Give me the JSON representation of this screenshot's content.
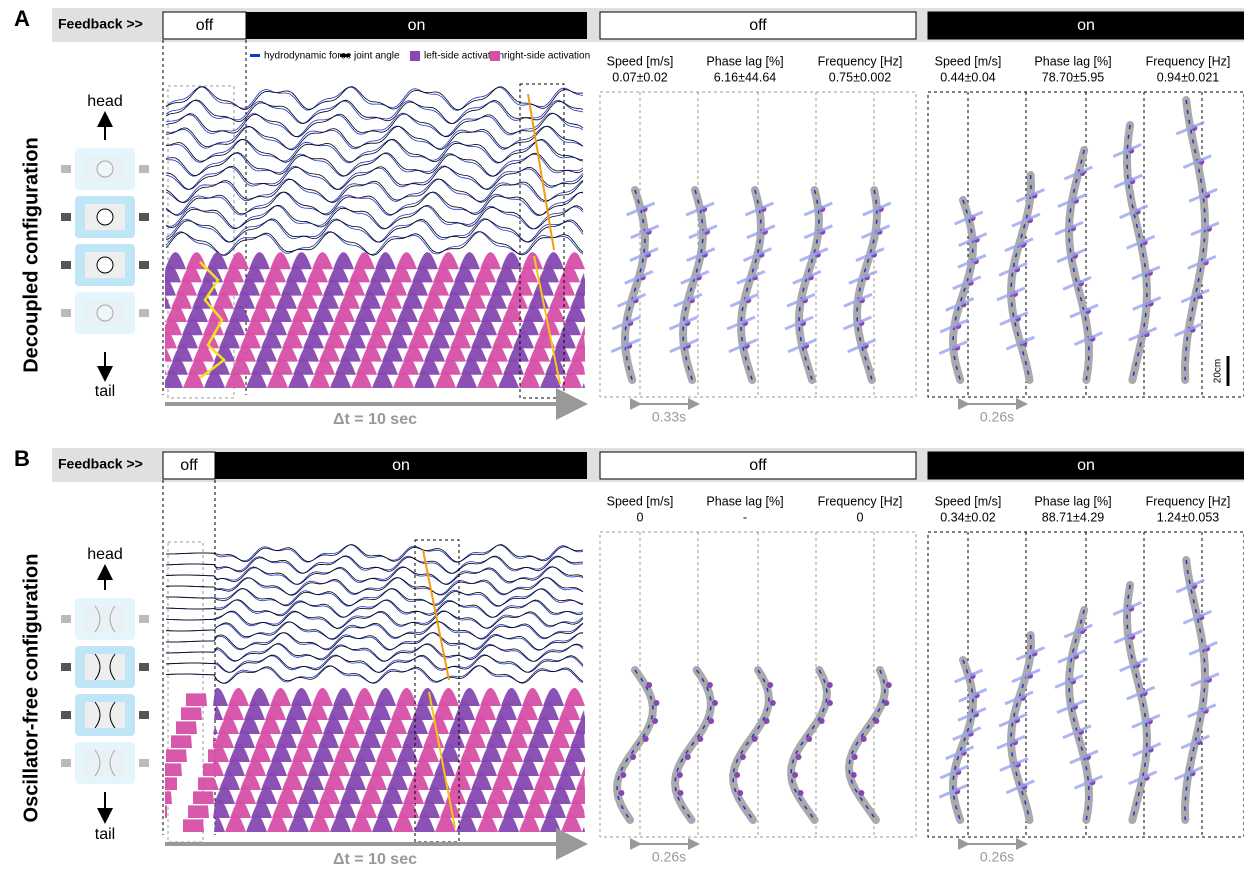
{
  "panels": [
    {
      "label": "A",
      "feedback": "Feedback >>",
      "trace_off": "off",
      "trace_on": "on",
      "legend": [
        "hydrodynamic force",
        "joint angle",
        "left-side activation",
        "right-side activation"
      ],
      "schematic": {
        "head": "head",
        "tail": "tail"
      },
      "configuration": "Decoupled configuration",
      "time_axis": "Δt = 10 sec",
      "conditions": [
        {
          "label": "off",
          "stats": [
            {
              "name": "Speed [m/s]",
              "value": "0.07±0.02"
            },
            {
              "name": "Phase lag [%]",
              "value": "6.16±44.64"
            },
            {
              "name": "Frequency [Hz]",
              "value": "0.75±0.002"
            }
          ],
          "interval": "0.33s"
        },
        {
          "label": "on",
          "stats": [
            {
              "name": "Speed [m/s]",
              "value": "0.44±0.04"
            },
            {
              "name": "Phase lag [%]",
              "value": "78.70±5.95"
            },
            {
              "name": "Frequency [Hz]",
              "value": "0.94±0.021"
            }
          ],
          "interval": "0.26s",
          "scale_bar": "20cm"
        }
      ]
    },
    {
      "label": "B",
      "feedback": "Feedback >>",
      "trace_off": "off",
      "trace_on": "on",
      "schematic": {
        "head": "head",
        "tail": "tail"
      },
      "configuration": "Oscillator-free configuration",
      "time_axis": "Δt = 10 sec",
      "conditions": [
        {
          "label": "off",
          "stats": [
            {
              "name": "Speed [m/s]",
              "value": "0"
            },
            {
              "name": "Phase lag [%]",
              "value": "-"
            },
            {
              "name": "Frequency [Hz]",
              "value": "0"
            }
          ],
          "interval": "0.26s"
        },
        {
          "label": "on",
          "stats": [
            {
              "name": "Speed [m/s]",
              "value": "0.34±0.02"
            },
            {
              "name": "Phase lag [%]",
              "value": "88.71±4.29"
            },
            {
              "name": "Frequency [Hz]",
              "value": "1.24±0.053"
            }
          ],
          "interval": "0.26s"
        }
      ]
    }
  ]
}
